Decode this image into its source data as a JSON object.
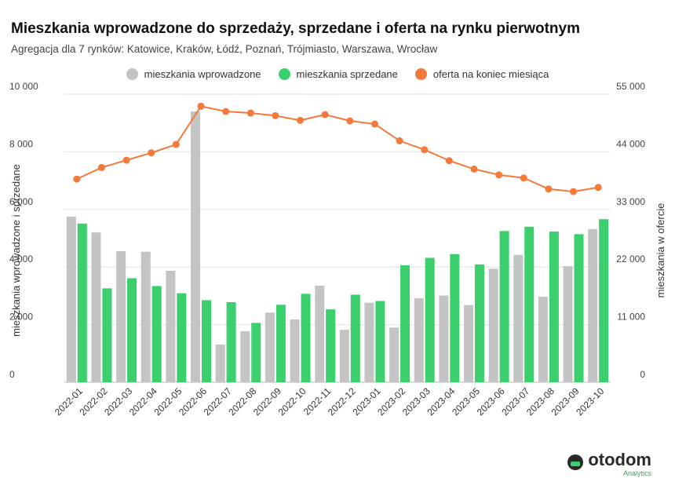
{
  "title": "Mieszkania wprowadzone do sprzedaży, sprzedane i oferta na rynku pierwotnym",
  "subtitle": "Agregacja dla 7 rynków: Katowice, Kraków, Łódź, Poznań, Trójmiasto, Warszawa, Wrocław",
  "brand": {
    "name": "otodom",
    "sub": "Analytics"
  },
  "chart_data": {
    "type": "bar",
    "categories": [
      "2022-01",
      "2022-02",
      "2022-03",
      "2022-04",
      "2022-05",
      "2022-06",
      "2022-07",
      "2022-08",
      "2022-09",
      "2022-10",
      "2022-11",
      "2022-12",
      "2023-01",
      "2023-02",
      "2023-03",
      "2023-04",
      "2023-05",
      "2023-06",
      "2023-07",
      "2023-08",
      "2023-09",
      "2023-10"
    ],
    "series": [
      {
        "name": "mieszkania wprowadzone",
        "type": "bar",
        "axis": "left",
        "color": "#c4c4c4",
        "values": [
          5750,
          5200,
          4550,
          4530,
          3870,
          9400,
          1310,
          1770,
          2420,
          2180,
          3350,
          1820,
          2760,
          1900,
          2920,
          3010,
          2680,
          3940,
          4420,
          2970,
          4030,
          5320
        ]
      },
      {
        "name": "mieszkania sprzedane",
        "type": "bar",
        "axis": "left",
        "color": "#3ccf6e",
        "values": [
          5510,
          3260,
          3610,
          3340,
          3090,
          2850,
          2780,
          2060,
          2690,
          3070,
          2530,
          3040,
          2820,
          4060,
          4320,
          4450,
          4090,
          5250,
          5400,
          5230,
          5140,
          5660
        ]
      },
      {
        "name": "oferta na koniec miesiąca",
        "type": "line",
        "axis": "right",
        "color": "#f47a3c",
        "values": [
          38800,
          41000,
          42400,
          43800,
          45400,
          52700,
          51700,
          51400,
          50900,
          50000,
          51100,
          49900,
          49300,
          46100,
          44400,
          42300,
          40700,
          39600,
          39000,
          36900,
          36400,
          37200
        ]
      }
    ],
    "ylabel": "mieszkania wprowadzone i sprzedane",
    "ylabel_right": "mieszkania w ofercie",
    "ylim": [
      0,
      10000
    ],
    "ylim_right": [
      0,
      55000
    ],
    "yticks": [
      0,
      2000,
      4000,
      6000,
      8000,
      10000
    ],
    "ytick_labels": [
      "0",
      "2 000",
      "4 000",
      "6 000",
      "8 000",
      "10 000"
    ],
    "yticks_right": [
      0,
      11000,
      22000,
      33000,
      44000,
      55000
    ],
    "ytick_labels_right": [
      "0",
      "11 000",
      "22 000",
      "33 000",
      "44 000",
      "55 000"
    ],
    "grid": true,
    "legend": "top-center"
  }
}
